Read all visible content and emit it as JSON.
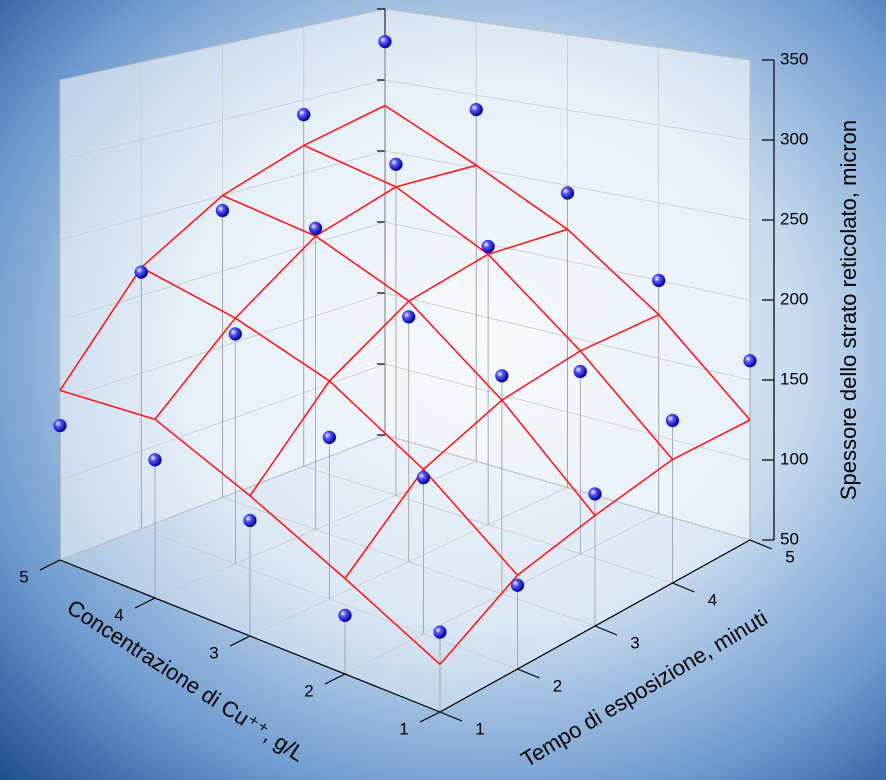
{
  "chart_data": {
    "type": "surface3d",
    "x_label": "Concentrazione di Cu⁺⁺, g/L",
    "y_label": "Tempo di esposizione, minuti",
    "z_label": "Spessore dello strato reticolato, micron",
    "xlim": [
      1,
      5
    ],
    "xticks": [
      1,
      2,
      3,
      4,
      5
    ],
    "ylim": [
      1,
      5
    ],
    "yticks": [
      1,
      2,
      3,
      4,
      5
    ],
    "zlim": [
      50,
      350
    ],
    "zticks": [
      50,
      100,
      150,
      200,
      250,
      300,
      350
    ],
    "surface_color": "#ff1a1a",
    "point_color": "#1a1aff",
    "surface": [
      [
        78,
        106,
        117,
        126,
        125
      ],
      [
        107,
        150,
        170,
        178,
        178
      ],
      [
        135,
        185,
        215,
        225,
        221
      ],
      [
        160,
        205,
        240,
        255,
        252
      ],
      [
        156,
        218,
        250,
        269,
        282
      ]
    ],
    "points": [
      [
        97,
        100,
        130,
        150,
        162
      ],
      [
        85,
        145,
        185,
        165,
        200
      ],
      [
        120,
        150,
        205,
        230,
        245
      ],
      [
        135,
        195,
        245,
        270,
        290
      ],
      [
        134,
        215,
        240,
        290,
        327
      ]
    ],
    "grid": true
  }
}
